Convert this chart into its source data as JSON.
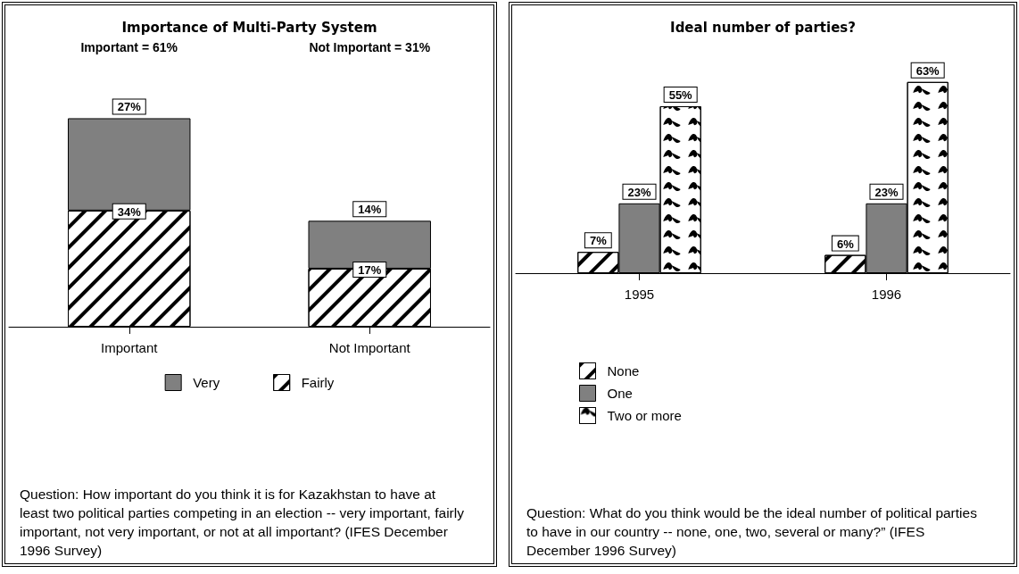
{
  "chart_data": [
    {
      "type": "bar",
      "title": "Importance of Multi-Party System",
      "stacked": true,
      "categories": [
        "Important",
        "Not Important"
      ],
      "series": [
        {
          "name": "Fairly",
          "color": "#ffffff",
          "values": [
            34,
            17
          ],
          "value_labels": [
            "34%",
            "17%"
          ]
        },
        {
          "name": "Very",
          "color": "#808080",
          "values": [
            27,
            14
          ],
          "value_labels": [
            "27%",
            "14%"
          ]
        }
      ],
      "legend": "bottom",
      "annotations": [
        "Important = 61%",
        "Not Important = 31%",
        "Question: How important do you think it is for Kazakhstan to have at least two political parties competing in an election -- very important, fairly important, not very important, or not at all important?  (IFES December 1996 Survey)"
      ]
    },
    {
      "type": "bar",
      "title": "Ideal number of parties?",
      "categories": [
        "1995",
        "1996"
      ],
      "series": [
        {
          "name": "None",
          "color": "#ffffff",
          "values": [
            7,
            6
          ],
          "value_labels": [
            "7%",
            "6%"
          ]
        },
        {
          "name": "One",
          "color": "#808080",
          "values": [
            23,
            23
          ],
          "value_labels": [
            "23%",
            "23%"
          ]
        },
        {
          "name": "Two or more",
          "color": "#ffffff",
          "values": [
            55,
            63
          ],
          "value_labels": [
            "55%",
            "63%"
          ]
        }
      ],
      "legend": "bottom left",
      "annotations": [
        "Question: What do you think would be the ideal number of political parties to have in our country -- none, one, two, several or many?”  (IFES December 1996 Survey)"
      ]
    }
  ]
}
